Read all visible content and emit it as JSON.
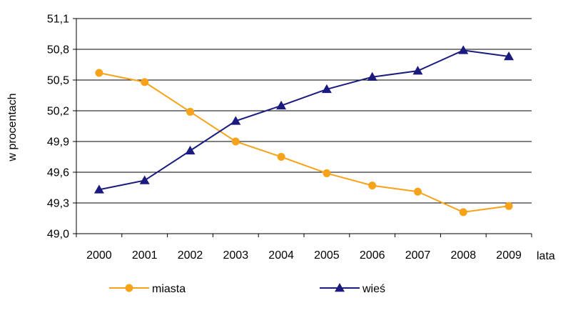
{
  "chart_data": {
    "type": "line",
    "title": "",
    "xlabel": "lata",
    "ylabel": "w procentach",
    "categories": [
      "2000",
      "2001",
      "2002",
      "2003",
      "2004",
      "2005",
      "2006",
      "2007",
      "2008",
      "2009"
    ],
    "ylim": [
      49.0,
      51.1
    ],
    "yticks": [
      "49,0",
      "49,3",
      "49,6",
      "49,9",
      "50,2",
      "50,5",
      "50,8",
      "51,1"
    ],
    "grid": "horizontal",
    "legend_position": "bottom",
    "series": [
      {
        "name": "miasta",
        "color": "#F7A21B",
        "marker": "circle",
        "values": [
          50.57,
          50.48,
          50.19,
          49.9,
          49.75,
          49.59,
          49.47,
          49.41,
          49.21,
          49.27
        ]
      },
      {
        "name": "wieś",
        "color": "#1B1B7F",
        "marker": "triangle",
        "values": [
          49.43,
          49.52,
          49.81,
          50.1,
          50.25,
          50.41,
          50.53,
          50.59,
          50.79,
          50.73
        ]
      }
    ]
  }
}
